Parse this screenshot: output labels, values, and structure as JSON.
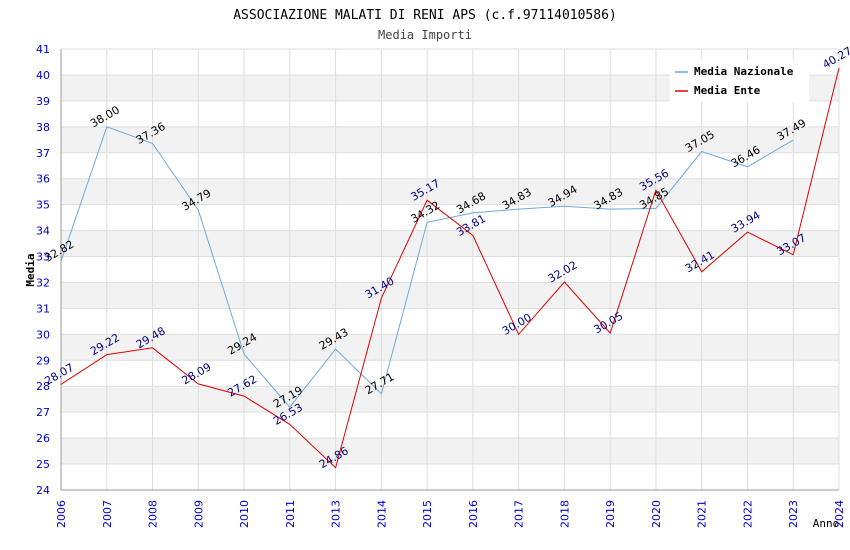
{
  "colors": {
    "nazionale": "#6fa8dc",
    "ente": "#e00000",
    "tick_text": "#0000cc",
    "label_nazionale": "#000000",
    "label_ente": "#000080",
    "band": "#f2f2f2",
    "grid": "#dddddd"
  },
  "chart_data": {
    "type": "line",
    "title": "ASSOCIAZIONE MALATI DI RENI APS (c.f.97114010586)",
    "subtitle": "Media Importi",
    "xlabel": "Anno",
    "ylabel": "Media",
    "ylim": [
      24,
      41
    ],
    "yticks": [
      "24",
      "25",
      "26",
      "27",
      "28",
      "29",
      "30",
      "31",
      "32",
      "33",
      "34",
      "35",
      "36",
      "37",
      "38",
      "39",
      "40",
      "41"
    ],
    "categories": [
      "2006",
      "2007",
      "2008",
      "2009",
      "2010",
      "2011",
      "2013",
      "2014",
      "2015",
      "2016",
      "2017",
      "2018",
      "2019",
      "2020",
      "2021",
      "2022",
      "2023",
      "2024"
    ],
    "legend_position": "top-right",
    "series": [
      {
        "name": "Media Nazionale",
        "values": [
          32.82,
          38.0,
          37.36,
          34.79,
          29.24,
          27.19,
          29.43,
          27.71,
          34.32,
          34.68,
          34.83,
          34.94,
          34.83,
          34.85,
          37.05,
          36.46,
          37.49,
          null
        ],
        "labels": [
          "32.82",
          "38.00",
          "37.36",
          "34.79",
          "29.24",
          "27.19",
          "29.43",
          "27.71",
          "34.32",
          "34.68",
          "34.83",
          "34.94",
          "34.83",
          "34.85",
          "37.05",
          "36.46",
          "37.49",
          null
        ]
      },
      {
        "name": "Media Ente",
        "values": [
          28.07,
          29.22,
          29.48,
          28.09,
          27.62,
          26.53,
          24.86,
          31.4,
          35.17,
          33.81,
          30.0,
          32.02,
          30.05,
          35.56,
          32.41,
          33.94,
          33.07,
          40.27
        ],
        "labels": [
          "28.07",
          "29.22",
          "29.48",
          "28.09",
          "27.62",
          "26.53",
          "24.86",
          "31.40",
          "35.17",
          "33.81",
          "30.00",
          "32.02",
          "30.05",
          "35.56",
          "32.41",
          "33.94",
          "33.07",
          "40.27"
        ]
      }
    ]
  }
}
